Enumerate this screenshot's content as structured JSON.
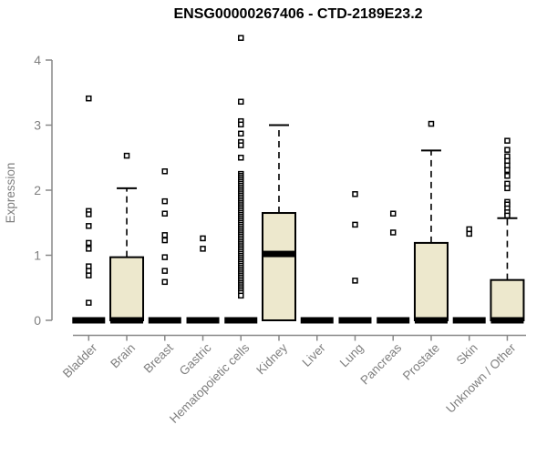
{
  "chart_data": {
    "type": "boxplot",
    "title": "ENSG00000267406 - CTD-2189E23.2",
    "xlabel": "",
    "ylabel": "Expression",
    "ylim": [
      0,
      4
    ],
    "yticks": [
      0,
      1,
      2,
      3,
      4
    ],
    "grid": false,
    "colors": {
      "box_fill": "#EDE8CD",
      "box_stroke": "#000000",
      "median": "#000000",
      "whisker": "#000000",
      "outlier_stroke": "#000000",
      "outlier_fill": "#ffffff",
      "axis": "#888888",
      "tick_text": "#7f7f7f",
      "title_text": "#000000"
    },
    "categories": [
      {
        "label": "Bladder",
        "q1": 0,
        "median": 0,
        "q3": 0,
        "whisker_low": 0,
        "whisker_high": 0,
        "outliers": [
          3.41,
          1.68,
          1.63,
          1.45,
          1.19,
          1.1,
          0.83,
          0.76,
          0.69,
          0.27
        ]
      },
      {
        "label": "Brain",
        "q1": 0,
        "median": 0,
        "q3": 0.97,
        "whisker_low": 0,
        "whisker_high": 2.03,
        "outliers": [
          2.53
        ]
      },
      {
        "label": "Breast",
        "q1": 0,
        "median": 0,
        "q3": 0,
        "whisker_low": 0,
        "whisker_high": 0,
        "outliers": [
          2.29,
          1.83,
          1.64,
          1.31,
          1.23,
          0.97,
          0.76,
          0.59
        ]
      },
      {
        "label": "Gastric",
        "q1": 0,
        "median": 0,
        "q3": 0,
        "whisker_low": 0,
        "whisker_high": 0,
        "outliers": [
          1.26,
          1.1
        ]
      },
      {
        "label": "Hematopoietic cells",
        "q1": 0,
        "median": 0,
        "q3": 0,
        "whisker_low": 0,
        "whisker_high": 0,
        "outliers": [
          4.34,
          3.36,
          3.06,
          3.01,
          2.87,
          2.74,
          2.69,
          2.5,
          2.25,
          2.22,
          2.19,
          2.16,
          2.13,
          2.1,
          2.07,
          2.04,
          2.01,
          1.98,
          1.95,
          1.92,
          1.89,
          1.86,
          1.83,
          1.8,
          1.77,
          1.74,
          1.71,
          1.68,
          1.65,
          1.62,
          1.59,
          1.56,
          1.53,
          1.5,
          1.47,
          1.44,
          1.41,
          1.38,
          1.35,
          1.32,
          1.29,
          1.26,
          1.23,
          1.2,
          1.17,
          1.14,
          1.11,
          1.08,
          1.05,
          1.02,
          0.99,
          0.96,
          0.93,
          0.9,
          0.87,
          0.84,
          0.81,
          0.78,
          0.75,
          0.72,
          0.69,
          0.66,
          0.63,
          0.6,
          0.57,
          0.54,
          0.51,
          0.48,
          0.45,
          0.42,
          0.38
        ]
      },
      {
        "label": "Kidney",
        "q1": 0,
        "median": 1.02,
        "q3": 1.65,
        "whisker_low": 0,
        "whisker_high": 3.0,
        "outliers": []
      },
      {
        "label": "Liver",
        "q1": 0,
        "median": 0,
        "q3": 0,
        "whisker_low": 0,
        "whisker_high": 0,
        "outliers": []
      },
      {
        "label": "Lung",
        "q1": 0,
        "median": 0,
        "q3": 0,
        "whisker_low": 0,
        "whisker_high": 0,
        "outliers": [
          1.94,
          1.47,
          0.61
        ]
      },
      {
        "label": "Pancreas",
        "q1": 0,
        "median": 0,
        "q3": 0,
        "whisker_low": 0,
        "whisker_high": 0,
        "outliers": [
          1.64,
          1.35
        ]
      },
      {
        "label": "Prostate",
        "q1": 0,
        "median": 0,
        "q3": 1.19,
        "whisker_low": 0,
        "whisker_high": 2.61,
        "outliers": [
          3.02
        ]
      },
      {
        "label": "Skin",
        "q1": 0,
        "median": 0,
        "q3": 0,
        "whisker_low": 0,
        "whisker_high": 0,
        "outliers": [
          1.4,
          1.33
        ]
      },
      {
        "label": "Unknown / Other",
        "q1": 0,
        "median": 0,
        "q3": 0.62,
        "whisker_low": 0,
        "whisker_high": 1.57,
        "outliers": [
          2.76,
          2.62,
          2.52,
          2.45,
          2.38,
          2.31,
          2.22,
          2.1,
          2.03,
          1.82,
          1.78,
          1.72,
          1.66,
          1.61
        ]
      }
    ]
  }
}
